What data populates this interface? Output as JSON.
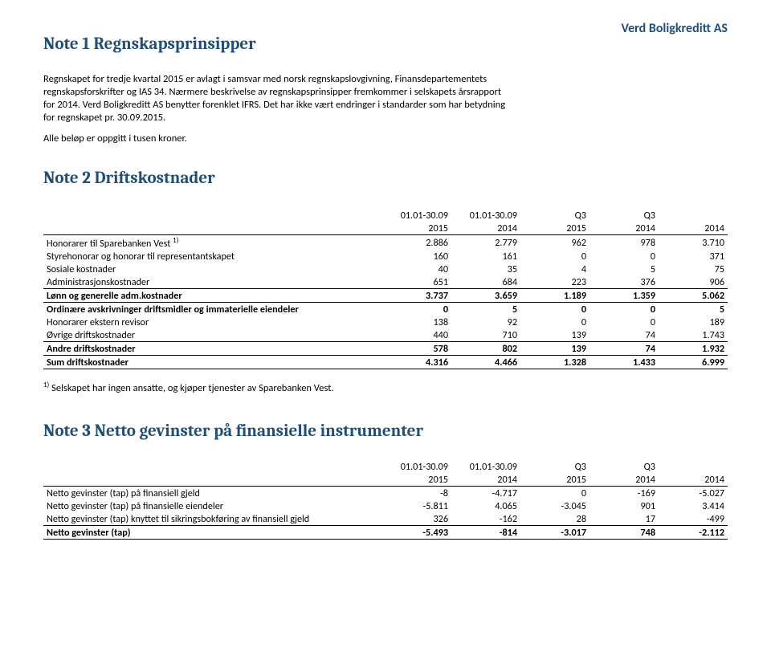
{
  "company": "Verd Boligkreditt AS",
  "note1": {
    "title": "Note 1 Regnskapsprinsipper",
    "para": [
      "Regnskapet for tredje kvartal 2015 er avlagt i samsvar med norsk regnskapslovgivning, Finansdepartementets",
      "regnskapsforskrifter og IAS 34. Nærmere beskrivelse av regnskapsprinsipper fremkommer i selskapets årsrapport",
      "for 2014. Verd Boligkreditt AS benytter forenklet IFRS. Det har ikke vært endringer i standarder som har betydning",
      "for regnskapet pr. 30.09.2015."
    ],
    "single": "Alle beløp er oppgitt i tusen kroner."
  },
  "note2": {
    "title": "Note 2 Driftskostnader",
    "hdr1": [
      "",
      "01.01-30.09",
      "01.01-30.09",
      "Q3",
      "Q3",
      ""
    ],
    "hdr2": [
      "",
      "2015",
      "2014",
      "2015",
      "2014",
      "2014"
    ],
    "rows": [
      {
        "label": "Honorarer til Sparebanken Vest",
        "sup": "1)",
        "cells": [
          "2.886",
          "2.779",
          "962",
          "978",
          "3.710"
        ],
        "cls": ""
      },
      {
        "label": "Styrehonorar og honorar til representantskapet",
        "cells": [
          "160",
          "161",
          "0",
          "0",
          "371"
        ],
        "cls": ""
      },
      {
        "label": "Sosiale kostnader",
        "cells": [
          "40",
          "35",
          "4",
          "5",
          "75"
        ],
        "cls": ""
      },
      {
        "label": "Administrasjonskostnader",
        "cells": [
          "651",
          "684",
          "223",
          "376",
          "906"
        ],
        "cls": ""
      },
      {
        "label": "Lønn og generelle adm.kostnader",
        "cells": [
          "3.737",
          "3.659",
          "1.189",
          "1.359",
          "5.062"
        ],
        "cls": "bold top-rule"
      },
      {
        "label": "Ordinære avskrivninger driftsmidler og immaterielle eiendeler",
        "cells": [
          "0",
          "5",
          "0",
          "0",
          "5"
        ],
        "cls": "bold top-rule"
      },
      {
        "label": "Honorarer ekstern revisor",
        "cells": [
          "138",
          "92",
          "0",
          "0",
          "189"
        ],
        "cls": ""
      },
      {
        "label": "Øvrige driftskostnader",
        "cells": [
          "440",
          "710",
          "139",
          "74",
          "1.743"
        ],
        "cls": ""
      },
      {
        "label": "Andre driftskostnader",
        "cells": [
          "578",
          "802",
          "139",
          "74",
          "1.932"
        ],
        "cls": "bold top-rule"
      },
      {
        "label": "Sum driftskostnader",
        "cells": [
          "4.316",
          "4.466",
          "1.328",
          "1.433",
          "6.999"
        ],
        "cls": "bold dbl-rule"
      }
    ],
    "footnote_sup": "1)",
    "footnote": " Selskapet har ingen ansatte, og kjøper tjenester av Sparebanken Vest."
  },
  "note3": {
    "title": "Note 3 Netto gevinster på finansielle instrumenter",
    "hdr1": [
      "",
      "01.01-30.09",
      "01.01-30.09",
      "Q3",
      "Q3",
      ""
    ],
    "hdr2": [
      "",
      "2015",
      "2014",
      "2015",
      "2014",
      "2014"
    ],
    "rows": [
      {
        "label": "Netto gevinster (tap) på finansiell gjeld",
        "cells": [
          "-8",
          "-4.717",
          "0",
          "-169",
          "-5.027"
        ],
        "cls": ""
      },
      {
        "label": "Netto gevinster (tap) på finansielle eiendeler",
        "cells": [
          "-5.811",
          "4.065",
          "-3.045",
          "901",
          "3.414"
        ],
        "cls": ""
      },
      {
        "label": "Netto gevinster (tap) knyttet til sikringsbokføring av finansiell gjeld",
        "cells": [
          "326",
          "-162",
          "28",
          "17",
          "-499"
        ],
        "cls": ""
      },
      {
        "label": "Netto gevinster (tap)",
        "cells": [
          "-5.493",
          "-814",
          "-3.017",
          "748",
          "-2.112"
        ],
        "cls": "bold dbl-rule"
      }
    ]
  }
}
